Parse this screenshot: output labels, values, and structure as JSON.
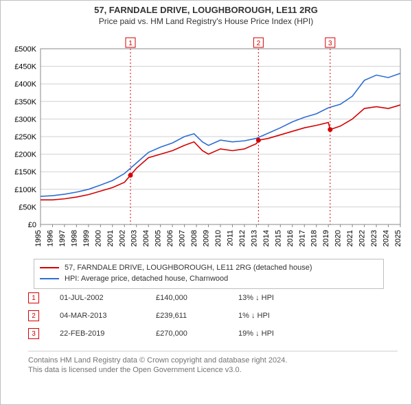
{
  "titles": {
    "line1": "57, FARNDALE DRIVE, LOUGHBOROUGH, LE11 2RG",
    "line2": "Price paid vs. HM Land Registry's House Price Index (HPI)"
  },
  "chart": {
    "type": "line",
    "plot_bg": "#ffffff",
    "grid_color": "#d0d0d0",
    "axis_color": "#888888",
    "x_years": [
      1995,
      1996,
      1997,
      1998,
      1999,
      2000,
      2001,
      2002,
      2003,
      2004,
      2005,
      2006,
      2007,
      2008,
      2009,
      2010,
      2011,
      2012,
      2013,
      2014,
      2015,
      2016,
      2017,
      2018,
      2019,
      2020,
      2021,
      2022,
      2023,
      2024,
      2025
    ],
    "ylim": [
      0,
      500000
    ],
    "ytick_step": 50000,
    "ytick_labels": [
      "£0",
      "£50K",
      "£100K",
      "£150K",
      "£200K",
      "£250K",
      "£300K",
      "£350K",
      "£400K",
      "£450K",
      "£500K"
    ],
    "series": [
      {
        "id": "property",
        "label": "57, FARNDALE DRIVE, LOUGHBOROUGH, LE11 2RG (detached house)",
        "color": "#d40000",
        "points": [
          [
            1995.0,
            70000
          ],
          [
            1996.0,
            70000
          ],
          [
            1997.0,
            73000
          ],
          [
            1998.0,
            78000
          ],
          [
            1999.0,
            85000
          ],
          [
            2000.0,
            95000
          ],
          [
            2001.0,
            105000
          ],
          [
            2002.0,
            120000
          ],
          [
            2002.5,
            140000
          ],
          [
            2003.0,
            160000
          ],
          [
            2004.0,
            190000
          ],
          [
            2005.0,
            200000
          ],
          [
            2006.0,
            210000
          ],
          [
            2007.0,
            225000
          ],
          [
            2007.8,
            235000
          ],
          [
            2008.5,
            210000
          ],
          [
            2009.0,
            200000
          ],
          [
            2010.0,
            215000
          ],
          [
            2011.0,
            210000
          ],
          [
            2012.0,
            215000
          ],
          [
            2013.0,
            230000
          ],
          [
            2013.17,
            239611
          ],
          [
            2014.0,
            245000
          ],
          [
            2015.0,
            255000
          ],
          [
            2016.0,
            265000
          ],
          [
            2017.0,
            275000
          ],
          [
            2018.0,
            282000
          ],
          [
            2019.0,
            290000
          ],
          [
            2019.15,
            270000
          ],
          [
            2020.0,
            280000
          ],
          [
            2021.0,
            300000
          ],
          [
            2022.0,
            330000
          ],
          [
            2023.0,
            335000
          ],
          [
            2024.0,
            330000
          ],
          [
            2025.0,
            340000
          ]
        ]
      },
      {
        "id": "hpi",
        "label": "HPI: Average price, detached house, Charnwood",
        "color": "#2e6dd3",
        "points": [
          [
            1995.0,
            80000
          ],
          [
            1996.0,
            82000
          ],
          [
            1997.0,
            86000
          ],
          [
            1998.0,
            92000
          ],
          [
            1999.0,
            100000
          ],
          [
            2000.0,
            112000
          ],
          [
            2001.0,
            125000
          ],
          [
            2002.0,
            145000
          ],
          [
            2003.0,
            175000
          ],
          [
            2004.0,
            205000
          ],
          [
            2005.0,
            220000
          ],
          [
            2006.0,
            232000
          ],
          [
            2007.0,
            250000
          ],
          [
            2007.8,
            258000
          ],
          [
            2008.5,
            235000
          ],
          [
            2009.0,
            225000
          ],
          [
            2010.0,
            240000
          ],
          [
            2011.0,
            235000
          ],
          [
            2012.0,
            238000
          ],
          [
            2013.0,
            245000
          ],
          [
            2014.0,
            260000
          ],
          [
            2015.0,
            275000
          ],
          [
            2016.0,
            292000
          ],
          [
            2017.0,
            305000
          ],
          [
            2018.0,
            315000
          ],
          [
            2019.0,
            332000
          ],
          [
            2020.0,
            342000
          ],
          [
            2021.0,
            365000
          ],
          [
            2022.0,
            410000
          ],
          [
            2023.0,
            425000
          ],
          [
            2024.0,
            418000
          ],
          [
            2025.0,
            430000
          ]
        ]
      }
    ],
    "sale_markers": [
      {
        "num": "1",
        "x": 2002.5,
        "y": 140000,
        "vline_color": "#d40000"
      },
      {
        "num": "2",
        "x": 2013.17,
        "y": 239611,
        "vline_color": "#d40000"
      },
      {
        "num": "3",
        "x": 2019.15,
        "y": 270000,
        "vline_color": "#d40000"
      }
    ],
    "marker_box_border": "#d40000",
    "marker_box_fill": "#ffffff",
    "marker_text_color": "#d40000",
    "sale_point_fill": "#d40000"
  },
  "legend": {
    "rows": [
      {
        "color": "#d40000",
        "text": "57, FARNDALE DRIVE, LOUGHBOROUGH, LE11 2RG (detached house)"
      },
      {
        "color": "#2e6dd3",
        "text": "HPI: Average price, detached house, Charnwood"
      }
    ]
  },
  "sales_table": {
    "box_border": "#d40000",
    "box_text_color": "#d40000",
    "arrow_glyph": "↓",
    "rows": [
      {
        "num": "1",
        "date": "01-JUL-2002",
        "price": "£140,000",
        "diff": "13% ↓ HPI"
      },
      {
        "num": "2",
        "date": "04-MAR-2013",
        "price": "£239,611",
        "diff": "1% ↓ HPI"
      },
      {
        "num": "3",
        "date": "22-FEB-2019",
        "price": "£270,000",
        "diff": "19% ↓ HPI"
      }
    ]
  },
  "credits": {
    "line1": "Contains HM Land Registry data © Crown copyright and database right 2024.",
    "line2": "This data is licensed under the Open Government Licence v3.0."
  }
}
